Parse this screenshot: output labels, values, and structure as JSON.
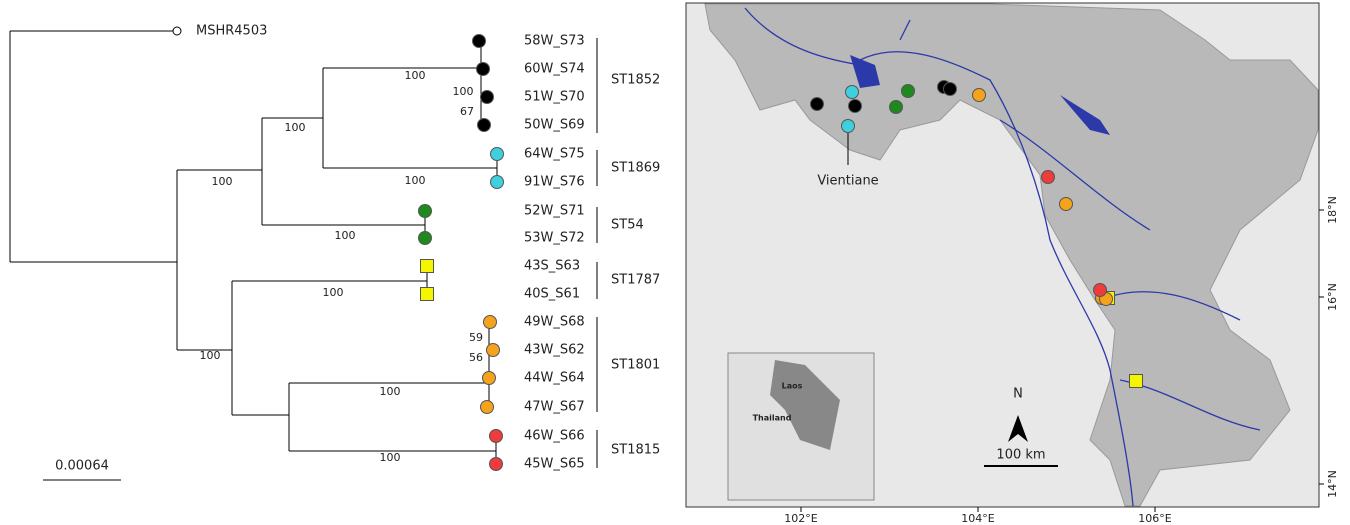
{
  "tree": {
    "root_label": "MSHR4503",
    "clades": [
      {
        "name": "ST1852",
        "color": "#000000",
        "shape": "circle",
        "leaves": [
          "58W_S73",
          "60W_S74",
          "51W_S70",
          "50W_S69"
        ]
      },
      {
        "name": "ST1869",
        "color": "#3fd0e0",
        "shape": "circle",
        "leaves": [
          "64W_S75",
          "91W_S76"
        ]
      },
      {
        "name": "ST54",
        "color": "#1e8a1e",
        "shape": "circle",
        "leaves": [
          "52W_S71",
          "53W_S72"
        ]
      },
      {
        "name": "ST1787",
        "color": "#f5f500",
        "shape": "square",
        "leaves": [
          "43S_S63",
          "40S_S61"
        ]
      },
      {
        "name": "ST1801",
        "color": "#f5a21c",
        "shape": "circle",
        "leaves": [
          "49W_S68",
          "43W_S62",
          "44W_S64",
          "47W_S67"
        ]
      },
      {
        "name": "ST1815",
        "color": "#ee3b3b",
        "shape": "circle",
        "leaves": [
          "46W_S66",
          "45W_S65"
        ]
      }
    ],
    "support": [
      "100",
      "100",
      "67",
      "100",
      "100",
      "100",
      "100",
      "100",
      "100",
      "59",
      "56",
      "100",
      "100"
    ],
    "scale_bar": "0.00064"
  },
  "map": {
    "city": "Vientiane",
    "north": "N",
    "scale": "100 km",
    "lon_ticks": [
      "102°E",
      "104°E",
      "106°E"
    ],
    "lat_ticks": [
      "18°N",
      "16°N",
      "14°N"
    ],
    "inset_labels": [
      "Laos",
      "Thailand"
    ]
  }
}
